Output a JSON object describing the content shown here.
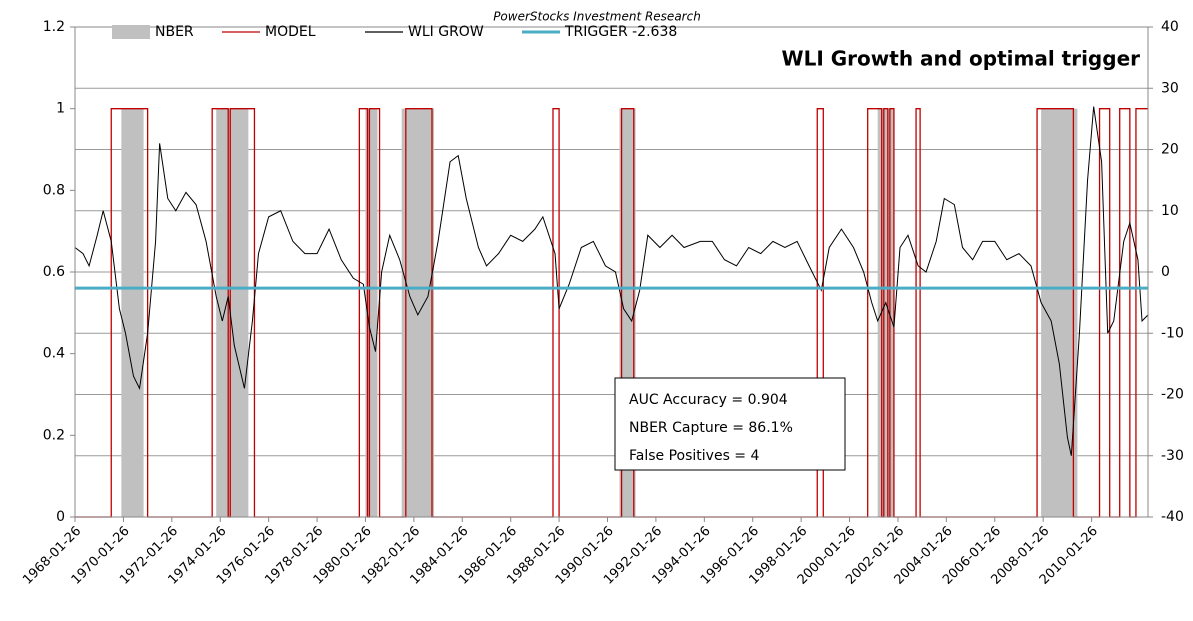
{
  "chart_data": {
    "type": "line",
    "header": "PowerStocks Investment Research",
    "title": "WLI Growth and optimal trigger",
    "xlim": [
      "1968-01-26",
      "2012-05-26"
    ],
    "xticks": [
      "1968-01-26",
      "1970-01-26",
      "1972-01-26",
      "1974-01-26",
      "1976-01-26",
      "1978-01-26",
      "1980-01-26",
      "1982-01-26",
      "1984-01-26",
      "1986-01-26",
      "1988-01-26",
      "1990-01-26",
      "1992-01-26",
      "1994-01-26",
      "1996-01-26",
      "1998-01-26",
      "2000-01-26",
      "2002-01-26",
      "2004-01-26",
      "2006-01-26",
      "2008-01-26",
      "2010-01-26"
    ],
    "ylim": [
      0,
      1.2
    ],
    "yticks": [
      0,
      0.2,
      0.4,
      0.6,
      0.8,
      1,
      1.2
    ],
    "y2lim": [
      -40,
      40
    ],
    "y2ticks": [
      -40,
      -30,
      -20,
      -10,
      0,
      10,
      20,
      30,
      40
    ],
    "grid": "y2",
    "series": [
      {
        "name": "NBER",
        "color": "#c0c0c0",
        "style": "step-area",
        "x": [
          "1968-01-26",
          "1969-12-26",
          "1970-11-26",
          "1973-11-26",
          "1975-03-26",
          "1980-01-26",
          "1980-07-26",
          "1981-07-26",
          "1982-11-26",
          "1990-07-26",
          "1991-03-26",
          "2001-03-26",
          "2001-11-26",
          "2007-12-26",
          "2009-06-26"
        ],
        "values": [
          0,
          1,
          0,
          1,
          0,
          1,
          0,
          1,
          0,
          1,
          0,
          1,
          0,
          1,
          0
        ]
      },
      {
        "name": "MODEL",
        "color": "#c00000",
        "style": "step",
        "x": [
          "1968-01-26",
          "1969-07-26",
          "1971-01-26",
          "1973-09-26",
          "1974-05-26",
          "1974-06-26",
          "1975-06-26",
          "1979-10-26",
          "1980-02-26",
          "1980-03-26",
          "1980-08-26",
          "1981-09-26",
          "1982-10-26",
          "1987-10-26",
          "1988-01-26",
          "1990-08-26",
          "1991-02-26",
          "1998-09-26",
          "1998-12-26",
          "2000-10-26",
          "2001-05-26",
          "2001-06-26",
          "2001-08-26",
          "2001-09-26",
          "2001-11-26",
          "2002-10-26",
          "2002-12-26",
          "2007-10-26",
          "2009-04-26",
          "2010-05-26",
          "2010-10-26",
          "2011-03-26",
          "2011-08-26",
          "2011-11-26"
        ],
        "values": [
          0,
          1,
          0,
          1,
          0,
          1,
          0,
          1,
          0,
          1,
          0,
          1,
          0,
          1,
          0,
          1,
          0,
          1,
          0,
          1,
          0,
          1,
          0,
          1,
          0,
          1,
          0,
          1,
          0,
          1,
          0,
          1,
          0,
          1
        ]
      },
      {
        "name": "WLI GROW",
        "color": "#000000",
        "style": "line",
        "axis": "y2",
        "x": [
          "1968-01-26",
          "1968-05-26",
          "1968-08-26",
          "1968-12-26",
          "1969-03-26",
          "1969-07-26",
          "1969-11-26",
          "1970-02-26",
          "1970-06-26",
          "1970-09-26",
          "1971-01-26",
          "1971-05-26",
          "1971-07-26",
          "1971-11-26",
          "1972-03-26",
          "1972-08-26",
          "1973-01-26",
          "1973-06-26",
          "1973-11-26",
          "1974-02-26",
          "1974-05-26",
          "1974-08-26",
          "1975-01-26",
          "1975-05-26",
          "1975-08-26",
          "1976-01-26",
          "1976-07-26",
          "1977-01-26",
          "1977-07-26",
          "1978-01-26",
          "1978-07-26",
          "1979-01-26",
          "1979-07-26",
          "1979-12-26",
          "1980-03-26",
          "1980-06-26",
          "1980-09-26",
          "1981-01-26",
          "1981-06-26",
          "1981-11-26",
          "1982-03-26",
          "1982-08-26",
          "1983-01-26",
          "1983-07-26",
          "1983-11-26",
          "1984-03-26",
          "1984-09-26",
          "1985-01-26",
          "1985-07-26",
          "1986-01-26",
          "1986-07-26",
          "1987-01-26",
          "1987-05-26",
          "1987-11-26",
          "1988-01-26",
          "1988-06-26",
          "1988-12-26",
          "1989-06-26",
          "1989-12-26",
          "1990-05-26",
          "1990-09-26",
          "1991-01-26",
          "1991-05-26",
          "1991-09-26",
          "1992-03-26",
          "1992-09-26",
          "1993-03-26",
          "1993-11-26",
          "1994-05-26",
          "1994-11-26",
          "1995-05-26",
          "1995-11-26",
          "1996-05-26",
          "1996-11-26",
          "1997-05-26",
          "1997-11-26",
          "1998-05-26",
          "1998-11-26",
          "1999-03-26",
          "1999-09-26",
          "2000-03-26",
          "2000-08-26",
          "2000-12-26",
          "2001-03-26",
          "2001-07-26",
          "2001-11-26",
          "2002-02-26",
          "2002-06-26",
          "2002-11-26",
          "2003-03-26",
          "2003-08-26",
          "2003-12-26",
          "2004-05-26",
          "2004-09-26",
          "2005-02-26",
          "2005-07-26",
          "2006-01-26",
          "2006-07-26",
          "2007-01-26",
          "2007-07-26",
          "2007-12-26",
          "2008-05-26",
          "2008-09-26",
          "2009-01-26",
          "2009-03-26",
          "2009-07-26",
          "2009-11-26",
          "2010-02-26",
          "2010-06-26",
          "2010-09-26",
          "2010-12-26",
          "2011-05-26",
          "2011-08-26",
          "2011-12-26",
          "2012-02-26",
          "2012-05-26"
        ],
        "values": [
          4,
          3,
          1,
          6,
          10,
          5,
          -6,
          -10,
          -17,
          -19,
          -10,
          5,
          21,
          12,
          10,
          13,
          11,
          5,
          -4,
          -8,
          -4,
          -12,
          -19,
          -8,
          3,
          9,
          10,
          5,
          3,
          3,
          7,
          2,
          -1,
          -2,
          -9,
          -13,
          0,
          6,
          2,
          -4,
          -7,
          -4,
          5,
          18,
          19,
          12,
          4,
          1,
          3,
          6,
          5,
          7,
          9,
          3,
          -6,
          -2,
          4,
          5,
          1,
          0,
          -6,
          -8,
          -3,
          6,
          4,
          6,
          4,
          5,
          5,
          2,
          1,
          4,
          3,
          5,
          4,
          5,
          1,
          -3,
          4,
          7,
          4,
          0,
          -5,
          -8,
          -5,
          -9,
          4,
          6,
          1,
          0,
          5,
          12,
          11,
          4,
          2,
          5,
          5,
          2,
          3,
          1,
          -5,
          -8,
          -15,
          -27,
          -30,
          -10,
          15,
          27,
          18,
          -10,
          -8,
          5,
          8,
          2,
          -8,
          -7
        ]
      },
      {
        "name": "TRIGGER -2.638",
        "color": "#4bacc6",
        "style": "hline",
        "axis": "y2",
        "value": -2.638
      }
    ],
    "annotations": [
      "AUC Accuracy = 0.904",
      "NBER Capture = 86.1%",
      "False Positives = 4"
    ]
  }
}
